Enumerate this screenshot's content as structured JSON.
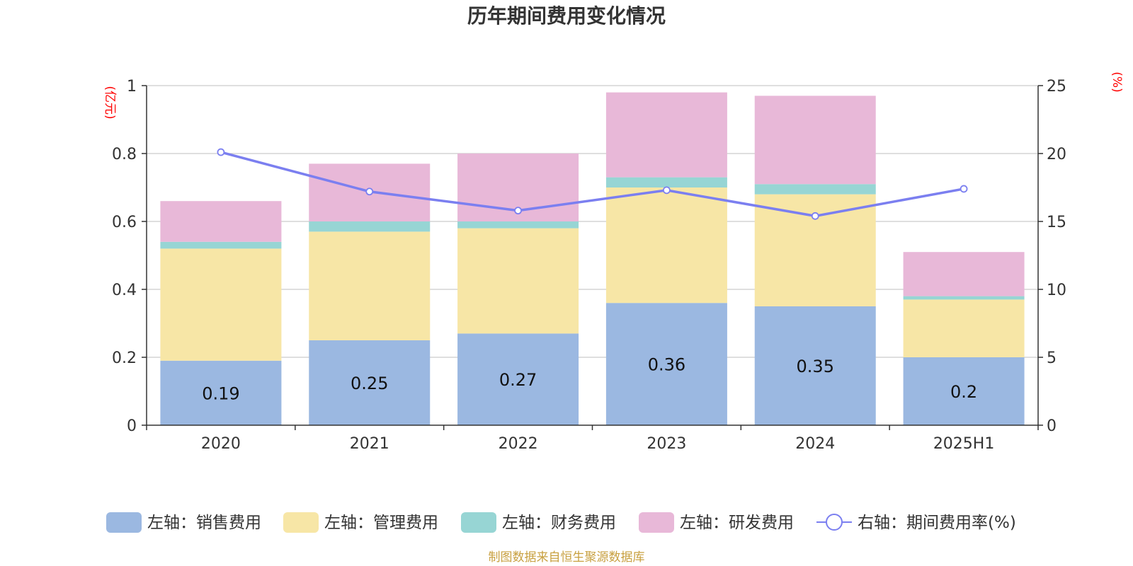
{
  "chart_data": {
    "type": "bar",
    "title": "历年期间费用变化情况",
    "categories": [
      "2020",
      "2021",
      "2022",
      "2023",
      "2024",
      "2025H1"
    ],
    "stacked": true,
    "left_axis": {
      "unit": "(亿元)",
      "ylim": [
        0,
        1
      ],
      "ticks": [
        "0",
        "0.2",
        "0.4",
        "0.6",
        "0.8",
        "1"
      ],
      "tick_values": [
        0,
        0.2,
        0.4,
        0.6,
        0.8,
        1
      ]
    },
    "right_axis": {
      "unit": "(%)",
      "ylim": [
        0,
        25
      ],
      "ticks": [
        "0",
        "5",
        "10",
        "15",
        "20",
        "25"
      ],
      "tick_values": [
        0,
        5,
        10,
        15,
        20,
        25
      ]
    },
    "series": [
      {
        "name": "左轴：销售费用",
        "type": "bar",
        "axis": "left",
        "color": "#9bb8e1",
        "values": [
          0.19,
          0.25,
          0.27,
          0.36,
          0.35,
          0.2
        ],
        "labels": [
          "0.19",
          "0.25",
          "0.27",
          "0.36",
          "0.35",
          "0.2"
        ]
      },
      {
        "name": "左轴：管理费用",
        "type": "bar",
        "axis": "left",
        "color": "#f7e6a6",
        "values": [
          0.33,
          0.32,
          0.31,
          0.34,
          0.33,
          0.17
        ]
      },
      {
        "name": "左轴：财务费用",
        "type": "bar",
        "axis": "left",
        "color": "#97d5d4",
        "values": [
          0.02,
          0.03,
          0.02,
          0.03,
          0.03,
          0.01
        ]
      },
      {
        "name": "左轴：研发费用",
        "type": "bar",
        "axis": "left",
        "color": "#e8b8d8",
        "values": [
          0.12,
          0.17,
          0.2,
          0.25,
          0.26,
          0.13
        ]
      },
      {
        "name": "右轴：期间费用率(%)",
        "type": "line",
        "axis": "right",
        "color": "#7b7ff0",
        "values": [
          20.1,
          17.2,
          15.8,
          17.3,
          15.4,
          17.4
        ]
      }
    ],
    "grid": true,
    "legend_position": "bottom"
  },
  "source_note": "制图数据来自恒生聚源数据库"
}
